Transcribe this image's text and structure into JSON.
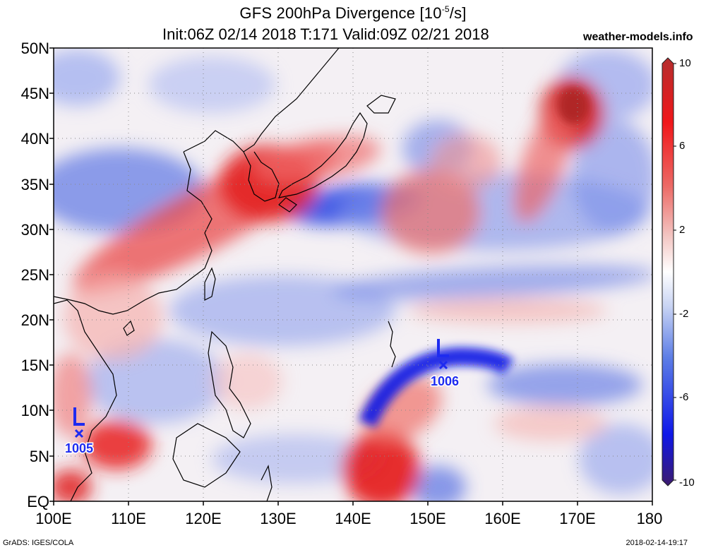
{
  "header": {
    "title_main": "GFS 200hPa Divergence [10",
    "title_exp": "-5",
    "title_unit": "/s]",
    "subtitle": "Init:06Z 02/14 2018 T:171 Valid:09Z 02/21 2018",
    "site": "weather-models.info"
  },
  "axes": {
    "lat_labels": [
      "50N",
      "45N",
      "40N",
      "35N",
      "30N",
      "25N",
      "20N",
      "15N",
      "10N",
      "5N",
      "EQ"
    ],
    "lon_labels": [
      "100E",
      "110E",
      "120E",
      "130E",
      "140E",
      "150E",
      "160E",
      "170E",
      "180"
    ]
  },
  "colorbar": {
    "labels": [
      "10",
      "6",
      "2",
      "-2",
      "-6",
      "-10"
    ],
    "colors": [
      "#3c1a6e",
      "#0f18e8",
      "#5d7ee6",
      "#c9d4f3",
      "#ffffff",
      "#f3c8c5",
      "#ec6a66",
      "#f0171a",
      "#b52e2e"
    ]
  },
  "lows": [
    {
      "label": "L",
      "pressure": "1005",
      "lon": 103.5,
      "lat": 7.3
    },
    {
      "label": "L",
      "pressure": "1006",
      "lon": 152.0,
      "lat": 14.8
    }
  ],
  "footer": {
    "left": "GrADS: IGES/COLA",
    "right": "2018-02-14-19:17"
  }
}
